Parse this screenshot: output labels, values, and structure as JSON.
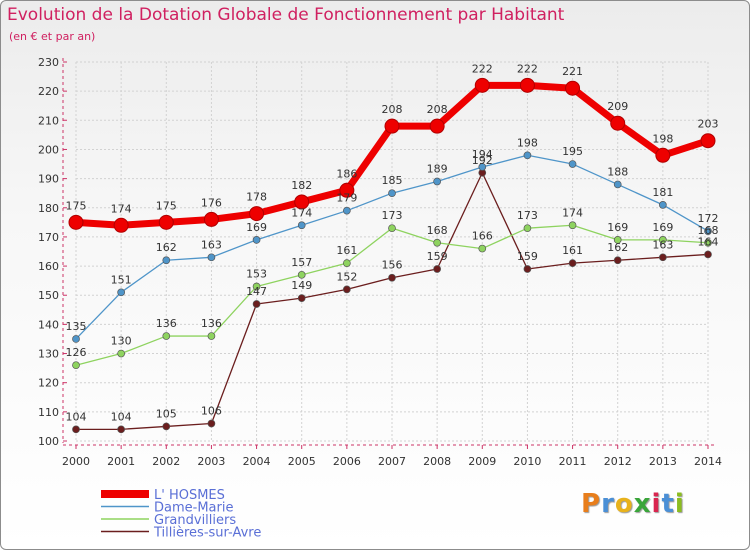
{
  "title": "Evolution de la Dotation Globale de Fonctionnement par Habitant",
  "subtitle": "(en € et par an)",
  "logo": "Proxiti",
  "chart_data": {
    "type": "line",
    "title": "Evolution de la Dotation Globale de Fonctionnement par Habitant",
    "subtitle": "(en € et par an)",
    "xlabel": "",
    "ylabel": "",
    "categories": [
      "2000",
      "2001",
      "2002",
      "2003",
      "2004",
      "2005",
      "2006",
      "2007",
      "2008",
      "2009",
      "2010",
      "2011",
      "2012",
      "2013",
      "2014"
    ],
    "ylim": [
      100,
      230
    ],
    "yticks": [
      100,
      110,
      120,
      130,
      140,
      150,
      160,
      170,
      180,
      190,
      200,
      210,
      220,
      230
    ],
    "grid": true,
    "legend_position": "bottom-left",
    "series": [
      {
        "name": "L' HOSMES",
        "color": "#ee0000",
        "values": [
          175,
          174,
          175,
          176,
          178,
          182,
          186,
          208,
          208,
          222,
          222,
          221,
          209,
          198,
          203
        ]
      },
      {
        "name": "Dame-Marie",
        "color": "#4f95c9",
        "values": [
          135,
          151,
          162,
          163,
          169,
          174,
          179,
          185,
          189,
          194,
          198,
          195,
          188,
          181,
          172
        ]
      },
      {
        "name": "Grandvilliers",
        "color": "#8ed35f",
        "values": [
          126,
          130,
          136,
          136,
          153,
          157,
          161,
          173,
          168,
          166,
          173,
          174,
          169,
          169,
          168
        ]
      },
      {
        "name": "Tillières-sur-Avre",
        "color": "#6b1e1e",
        "values": [
          104,
          104,
          105,
          106,
          147,
          149,
          152,
          156,
          159,
          192,
          159,
          161,
          162,
          163,
          164
        ]
      }
    ]
  }
}
